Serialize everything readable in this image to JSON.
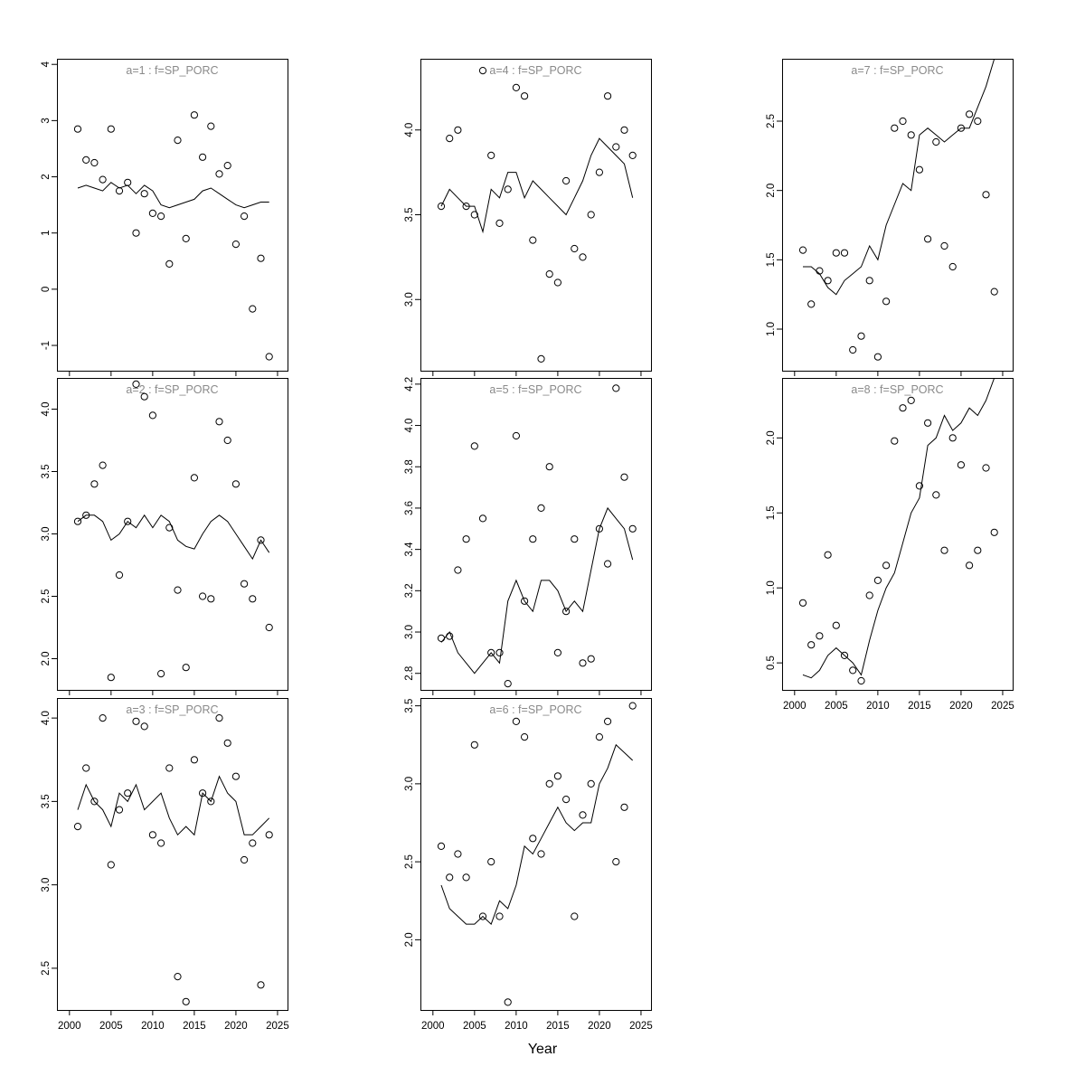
{
  "figure": {
    "xlabel": "Year",
    "x_ticks": [
      2000,
      2005,
      2010,
      2015,
      2020,
      2025
    ],
    "xlim": [
      1998.5,
      2026.2
    ],
    "background": "#ffffff",
    "line_color": "#000000",
    "point_color": "#000000",
    "title_color": "#8a8a8a",
    "axis_color": "#000000",
    "legend": "none",
    "grid": "off"
  },
  "chart_data": [
    {
      "type": "scatter+line",
      "title": "a=1 : f=SP_PORC",
      "col": 1,
      "row": 1,
      "show_x_labels": false,
      "ylim": [
        -1.45,
        4.1
      ],
      "yticks": [
        -1,
        0,
        1,
        2,
        3,
        4
      ],
      "x": [
        2001,
        2002,
        2003,
        2004,
        2005,
        2006,
        2007,
        2008,
        2009,
        2010,
        2011,
        2012,
        2013,
        2014,
        2015,
        2016,
        2017,
        2018,
        2019,
        2020,
        2021,
        2022,
        2023,
        2024
      ],
      "points": [
        2.85,
        2.3,
        2.25,
        1.95,
        2.85,
        1.75,
        1.9,
        1.0,
        1.7,
        1.35,
        1.3,
        0.45,
        2.65,
        0.9,
        3.1,
        2.35,
        2.9,
        2.05,
        2.2,
        0.8,
        1.3,
        -0.35,
        0.55,
        -1.2
      ],
      "line": [
        1.8,
        1.85,
        1.8,
        1.75,
        1.9,
        1.8,
        1.85,
        1.7,
        1.85,
        1.75,
        1.5,
        1.45,
        1.5,
        1.55,
        1.6,
        1.75,
        1.8,
        1.7,
        1.6,
        1.5,
        1.45,
        1.5,
        1.55,
        1.55
      ]
    },
    {
      "type": "scatter+line",
      "title": "a=2 : f=SP_PORC",
      "col": 1,
      "row": 2,
      "show_x_labels": false,
      "ylim": [
        1.75,
        4.25
      ],
      "yticks": [
        2.0,
        2.5,
        3.0,
        3.5,
        4.0
      ],
      "x": [
        2001,
        2002,
        2003,
        2004,
        2005,
        2006,
        2007,
        2008,
        2009,
        2010,
        2011,
        2012,
        2013,
        2014,
        2015,
        2016,
        2017,
        2018,
        2019,
        2020,
        2021,
        2022,
        2023,
        2024
      ],
      "points": [
        3.1,
        3.15,
        3.4,
        3.55,
        1.85,
        2.67,
        3.1,
        4.2,
        4.1,
        3.95,
        1.88,
        3.05,
        2.55,
        1.93,
        3.45,
        2.5,
        2.48,
        3.9,
        3.75,
        3.4,
        2.6,
        2.48,
        2.95,
        2.25
      ],
      "line": [
        3.1,
        3.15,
        3.15,
        3.1,
        2.95,
        3.0,
        3.1,
        3.05,
        3.15,
        3.05,
        3.15,
        3.1,
        2.95,
        2.9,
        2.88,
        3.0,
        3.1,
        3.15,
        3.1,
        3.0,
        2.9,
        2.8,
        2.95,
        2.85
      ]
    },
    {
      "type": "scatter+line",
      "title": "a=3 : f=SP_PORC",
      "col": 1,
      "row": 3,
      "show_x_labels": true,
      "ylim": [
        2.25,
        4.12
      ],
      "yticks": [
        2.5,
        3.0,
        3.5,
        4.0
      ],
      "x": [
        2001,
        2002,
        2003,
        2004,
        2005,
        2006,
        2007,
        2008,
        2009,
        2010,
        2011,
        2012,
        2013,
        2014,
        2015,
        2016,
        2017,
        2018,
        2019,
        2020,
        2021,
        2022,
        2023,
        2024
      ],
      "points": [
        3.35,
        3.7,
        3.5,
        4.0,
        3.12,
        3.45,
        3.55,
        3.98,
        3.95,
        3.3,
        3.25,
        3.7,
        2.45,
        2.3,
        3.75,
        3.55,
        3.5,
        4.0,
        3.85,
        3.65,
        3.15,
        3.25,
        2.4,
        3.3
      ],
      "line": [
        3.45,
        3.6,
        3.5,
        3.45,
        3.35,
        3.55,
        3.5,
        3.6,
        3.45,
        3.5,
        3.55,
        3.4,
        3.3,
        3.35,
        3.3,
        3.55,
        3.5,
        3.65,
        3.55,
        3.5,
        3.3,
        3.3,
        3.35,
        3.4
      ]
    },
    {
      "type": "scatter+line",
      "title": "a=4 : f=SP_PORC",
      "col": 2,
      "row": 1,
      "show_x_labels": false,
      "ylim": [
        2.58,
        4.42
      ],
      "yticks": [
        3.0,
        3.5,
        4.0
      ],
      "x": [
        2001,
        2002,
        2003,
        2004,
        2005,
        2006,
        2007,
        2008,
        2009,
        2010,
        2011,
        2012,
        2013,
        2014,
        2015,
        2016,
        2017,
        2018,
        2019,
        2020,
        2021,
        2022,
        2023,
        2024
      ],
      "points": [
        3.55,
        3.95,
        4.0,
        3.55,
        3.5,
        4.35,
        3.85,
        3.45,
        3.65,
        4.25,
        4.2,
        3.35,
        2.65,
        3.15,
        3.1,
        3.7,
        3.3,
        3.25,
        3.5,
        3.75,
        4.2,
        3.9,
        4.0,
        3.85
      ],
      "line": [
        3.55,
        3.65,
        3.6,
        3.55,
        3.55,
        3.4,
        3.65,
        3.6,
        3.75,
        3.75,
        3.6,
        3.7,
        3.65,
        3.6,
        3.55,
        3.5,
        3.6,
        3.7,
        3.85,
        3.95,
        3.9,
        3.85,
        3.8,
        3.6
      ]
    },
    {
      "type": "scatter+line",
      "title": "a=5 : f=SP_PORC",
      "col": 2,
      "row": 2,
      "show_x_labels": false,
      "ylim": [
        2.72,
        4.23
      ],
      "yticks": [
        2.8,
        3.0,
        3.2,
        3.4,
        3.6,
        3.8,
        4.0,
        4.2
      ],
      "x": [
        2001,
        2002,
        2003,
        2004,
        2005,
        2006,
        2007,
        2008,
        2009,
        2010,
        2011,
        2012,
        2013,
        2014,
        2015,
        2016,
        2017,
        2018,
        2019,
        2020,
        2021,
        2022,
        2023,
        2024
      ],
      "points": [
        2.97,
        2.98,
        3.3,
        3.45,
        3.9,
        3.55,
        2.9,
        2.9,
        2.75,
        3.95,
        3.15,
        3.45,
        3.6,
        3.8,
        2.9,
        3.1,
        3.45,
        2.85,
        2.87,
        3.5,
        3.33,
        4.18,
        3.75,
        3.5
      ],
      "line": [
        2.95,
        3.0,
        2.9,
        2.85,
        2.8,
        2.85,
        2.9,
        2.85,
        3.15,
        3.25,
        3.15,
        3.1,
        3.25,
        3.25,
        3.2,
        3.1,
        3.15,
        3.1,
        3.3,
        3.5,
        3.6,
        3.55,
        3.5,
        3.35
      ]
    },
    {
      "type": "scatter+line",
      "title": "a=6 : f=SP_PORC",
      "col": 2,
      "row": 3,
      "show_x_labels": true,
      "ylim": [
        1.55,
        3.55
      ],
      "yticks": [
        2.0,
        2.5,
        3.0,
        3.5
      ],
      "x": [
        2001,
        2002,
        2003,
        2004,
        2005,
        2006,
        2007,
        2008,
        2009,
        2010,
        2011,
        2012,
        2013,
        2014,
        2015,
        2016,
        2017,
        2018,
        2019,
        2020,
        2021,
        2022,
        2023,
        2024
      ],
      "points": [
        2.6,
        2.4,
        2.55,
        2.4,
        3.25,
        2.15,
        2.5,
        2.15,
        1.6,
        3.4,
        3.3,
        2.65,
        2.55,
        3.0,
        3.05,
        2.9,
        2.15,
        2.8,
        3.0,
        3.3,
        3.4,
        2.5,
        2.85,
        3.5
      ],
      "line": [
        2.35,
        2.2,
        2.15,
        2.1,
        2.1,
        2.15,
        2.1,
        2.25,
        2.2,
        2.35,
        2.6,
        2.55,
        2.65,
        2.75,
        2.85,
        2.75,
        2.7,
        2.75,
        2.75,
        3.0,
        3.1,
        3.25,
        3.2,
        3.15
      ]
    },
    {
      "type": "scatter+line",
      "title": "a=7 : f=SP_PORC",
      "col": 3,
      "row": 1,
      "show_x_labels": false,
      "ylim": [
        0.7,
        2.95
      ],
      "yticks": [
        1.0,
        1.5,
        2.0,
        2.5
      ],
      "x": [
        2001,
        2002,
        2003,
        2004,
        2005,
        2006,
        2007,
        2008,
        2009,
        2010,
        2011,
        2012,
        2013,
        2014,
        2015,
        2016,
        2017,
        2018,
        2019,
        2020,
        2021,
        2022,
        2023,
        2024
      ],
      "points": [
        1.57,
        1.18,
        1.42,
        1.35,
        1.55,
        1.55,
        0.85,
        0.95,
        1.35,
        0.8,
        1.2,
        2.45,
        2.5,
        2.4,
        2.15,
        1.65,
        2.35,
        1.6,
        1.45,
        2.45,
        2.55,
        2.5,
        1.97,
        1.27
      ],
      "line": [
        1.45,
        1.45,
        1.4,
        1.3,
        1.25,
        1.35,
        1.4,
        1.45,
        1.6,
        1.5,
        1.75,
        1.9,
        2.05,
        2.0,
        2.4,
        2.45,
        2.4,
        2.35,
        2.4,
        2.45,
        2.45,
        2.6,
        2.75,
        2.95
      ]
    },
    {
      "type": "scatter+line",
      "title": "a=8 : f=SP_PORC",
      "col": 3,
      "row": 2,
      "show_x_labels": true,
      "ylim": [
        0.32,
        2.4
      ],
      "yticks": [
        0.5,
        1.0,
        1.5,
        2.0
      ],
      "x": [
        2001,
        2002,
        2003,
        2004,
        2005,
        2006,
        2007,
        2008,
        2009,
        2010,
        2011,
        2012,
        2013,
        2014,
        2015,
        2016,
        2017,
        2018,
        2019,
        2020,
        2021,
        2022,
        2023,
        2024
      ],
      "points": [
        0.9,
        0.62,
        0.68,
        1.22,
        0.75,
        0.55,
        0.45,
        0.38,
        0.95,
        1.05,
        1.15,
        1.98,
        2.2,
        2.25,
        1.68,
        2.1,
        1.62,
        1.25,
        2.0,
        1.82,
        1.15,
        1.25,
        1.8,
        1.37
      ],
      "line": [
        0.42,
        0.4,
        0.45,
        0.55,
        0.6,
        0.55,
        0.5,
        0.42,
        0.65,
        0.85,
        1.0,
        1.1,
        1.3,
        1.5,
        1.6,
        1.95,
        2.0,
        2.15,
        2.05,
        2.1,
        2.2,
        2.15,
        2.25,
        2.4
      ]
    }
  ]
}
